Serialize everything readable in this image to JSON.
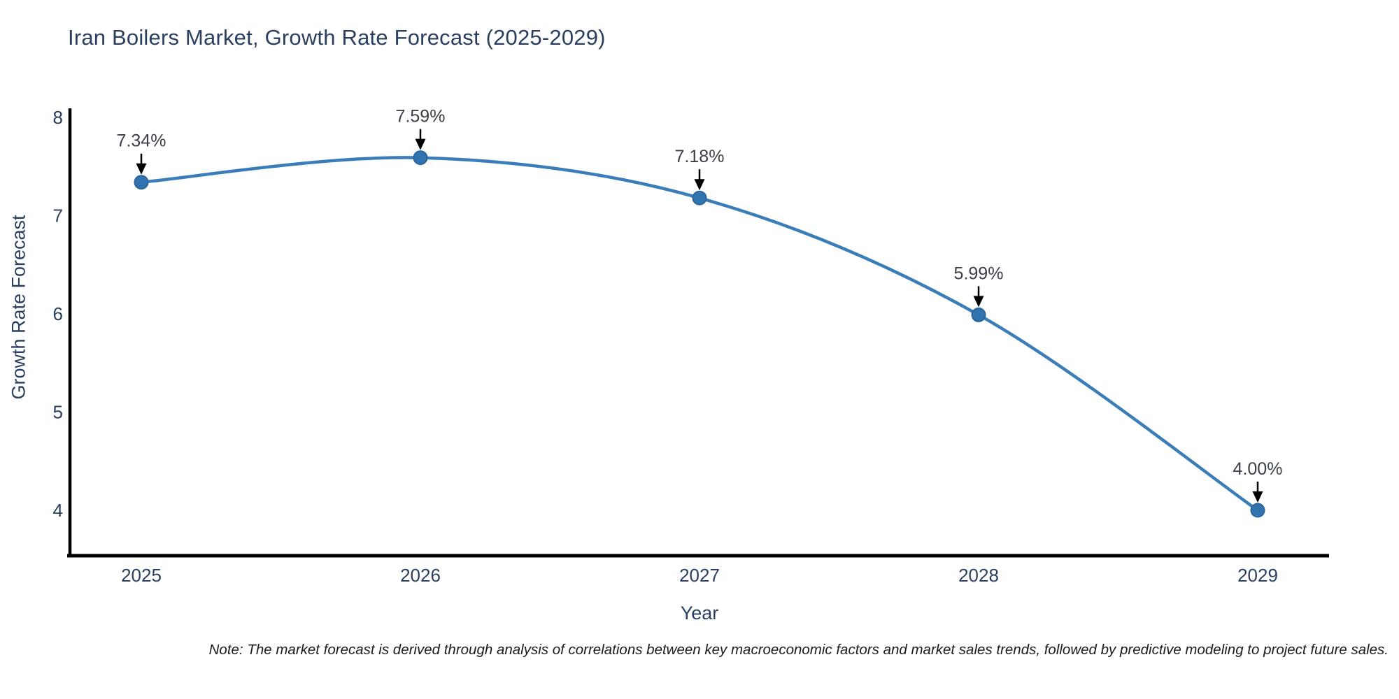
{
  "title": "Iran Boilers Market, Growth Rate Forecast (2025-2029)",
  "chart_data": {
    "type": "line",
    "title": "Iran Boilers Market, Growth Rate Forecast (2025-2029)",
    "xlabel": "Year",
    "ylabel": "Growth Rate Forecast",
    "x": [
      2025,
      2026,
      2027,
      2028,
      2029
    ],
    "series": [
      {
        "name": "Growth Rate Forecast",
        "values": [
          7.34,
          7.59,
          7.18,
          5.99,
          4.0
        ]
      }
    ],
    "point_labels": [
      "7.34%",
      "7.59%",
      "7.18%",
      "5.99%",
      "4.00%"
    ],
    "yticks": [
      4,
      5,
      6,
      7,
      8
    ],
    "xticks": [
      "2025",
      "2026",
      "2027",
      "2028",
      "2029"
    ],
    "ylim": [
      3.54,
      8.08
    ],
    "xlim": [
      2024.74,
      2029.26
    ],
    "grid": false,
    "legend_position": "none",
    "line_smoothing": "spline",
    "colors": {
      "line": "#3b7db8",
      "marker": "#3173ae",
      "marker_edge": "#2a659c",
      "axis_spine": "#000000",
      "annotation_arrow": "#000000",
      "annotation_text": "#3a3f47",
      "tick_text": "#2a3f5f",
      "title_text": "#2a3f5f",
      "background": "#ffffff"
    }
  },
  "note": "Note: The market forecast is derived through analysis of correlations between key macroeconomic factors and market sales trends, followed by predictive modeling to project future sales."
}
